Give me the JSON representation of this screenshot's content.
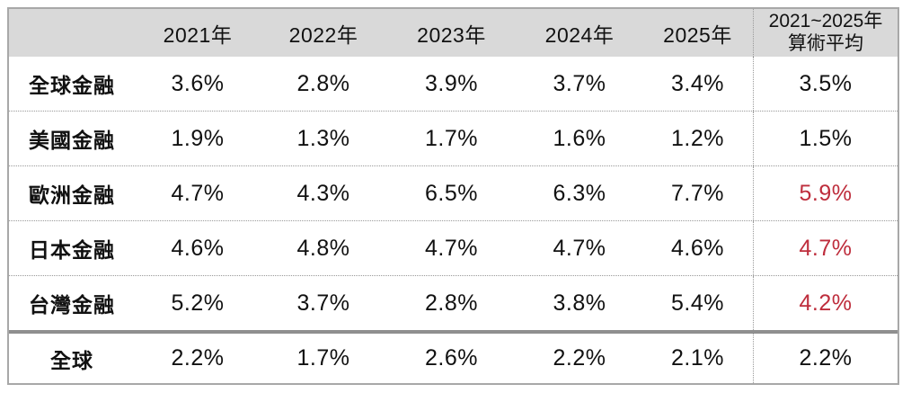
{
  "colors": {
    "header_background": "#D9D9D9",
    "outer_border": "#A8A8A8",
    "dotted_line": "#999999",
    "thick_divider": "#8F8F8F",
    "text": "#111111",
    "highlight_red": "#BE2D3C"
  },
  "table": {
    "header": {
      "corner": "",
      "years": [
        "2021年",
        "2022年",
        "2023年",
        "2024年",
        "2025年"
      ],
      "avg_line1": "2021~2025年",
      "avg_line2": "算術平均"
    },
    "rows": [
      {
        "label": "全球金融",
        "values": [
          "3.6%",
          "2.8%",
          "3.9%",
          "3.7%",
          "3.4%"
        ],
        "avg": "3.5%",
        "avg_color": "black"
      },
      {
        "label": "美國金融",
        "values": [
          "1.9%",
          "1.3%",
          "1.7%",
          "1.6%",
          "1.2%"
        ],
        "avg": "1.5%",
        "avg_color": "black"
      },
      {
        "label": "歐洲金融",
        "values": [
          "4.7%",
          "4.3%",
          "6.5%",
          "6.3%",
          "7.7%"
        ],
        "avg": "5.9%",
        "avg_color": "red"
      },
      {
        "label": "日本金融",
        "values": [
          "4.6%",
          "4.8%",
          "4.7%",
          "4.7%",
          "4.6%"
        ],
        "avg": "4.7%",
        "avg_color": "red"
      },
      {
        "label": "台灣金融",
        "values": [
          "5.2%",
          "3.7%",
          "2.8%",
          "3.8%",
          "5.4%"
        ],
        "avg": "4.2%",
        "avg_color": "red"
      }
    ],
    "footer": {
      "label": "全球",
      "values": [
        "2.2%",
        "1.7%",
        "2.6%",
        "2.2%",
        "2.1%"
      ],
      "avg": "2.2%",
      "avg_color": "black"
    }
  },
  "chart_data": {
    "type": "table",
    "columns": [
      "",
      "2021年",
      "2022年",
      "2023年",
      "2024年",
      "2025年",
      "2021~2025年算術平均"
    ],
    "rows": [
      [
        "全球金融",
        "3.6%",
        "2.8%",
        "3.9%",
        "3.7%",
        "3.4%",
        "3.5%"
      ],
      [
        "美國金融",
        "1.9%",
        "1.3%",
        "1.7%",
        "1.6%",
        "1.2%",
        "1.5%"
      ],
      [
        "歐洲金融",
        "4.7%",
        "4.3%",
        "6.5%",
        "6.3%",
        "7.7%",
        "5.9%"
      ],
      [
        "日本金融",
        "4.6%",
        "4.8%",
        "4.7%",
        "4.7%",
        "4.6%",
        "4.7%"
      ],
      [
        "台灣金融",
        "5.2%",
        "3.7%",
        "2.8%",
        "3.8%",
        "5.4%",
        "4.2%"
      ],
      [
        "全球",
        "2.2%",
        "1.7%",
        "2.6%",
        "2.2%",
        "2.1%",
        "2.2%"
      ]
    ],
    "highlighted_cells": [
      {
        "row": "歐洲金融",
        "column": "2021~2025年算術平均",
        "value": "5.9%"
      },
      {
        "row": "日本金融",
        "column": "2021~2025年算術平均",
        "value": "4.7%"
      },
      {
        "row": "台灣金融",
        "column": "2021~2025年算術平均",
        "value": "4.2%"
      }
    ],
    "highlight_color": "#BE2D3C",
    "layout": {
      "header_fill": "#D9D9D9",
      "row_separators": "dotted",
      "avg_column_separator": "dotted-vertical",
      "footer_separator": "thick-gray"
    }
  }
}
